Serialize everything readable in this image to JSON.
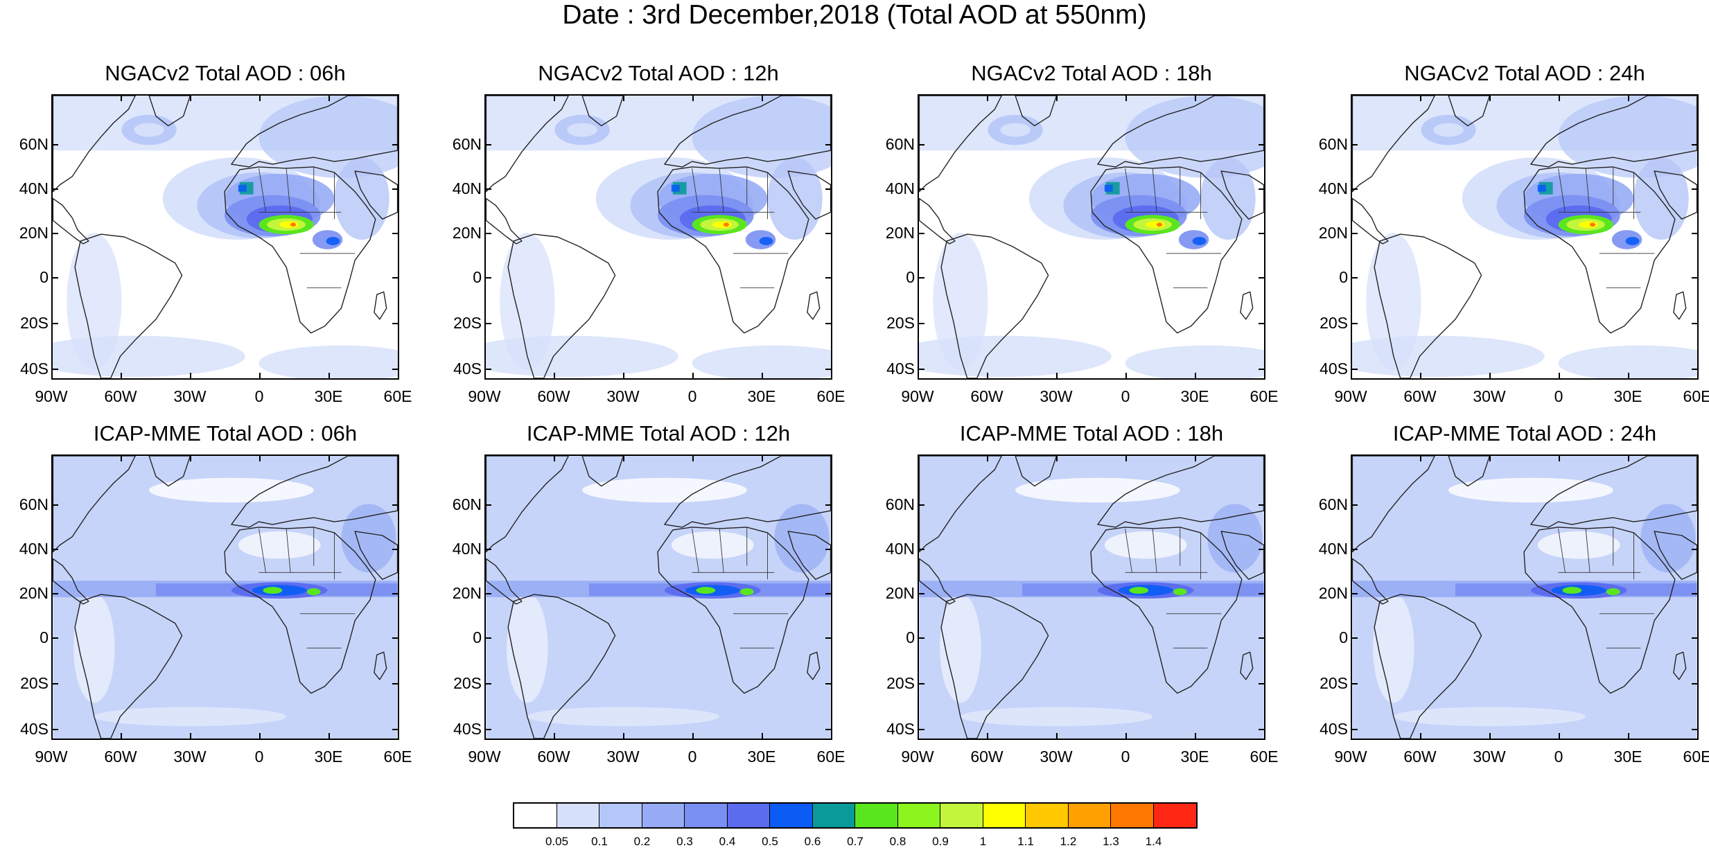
{
  "title": "Date : 3rd December,2018 (Total AOD at 550nm)",
  "panels": [
    {
      "title": "NGACv2 Total AOD : 06h"
    },
    {
      "title": "NGACv2 Total AOD : 12h"
    },
    {
      "title": "NGACv2 Total AOD : 18h"
    },
    {
      "title": "NGACv2 Total AOD : 24h"
    },
    {
      "title": "ICAP-MME Total AOD : 06h"
    },
    {
      "title": "ICAP-MME Total AOD : 12h"
    },
    {
      "title": "ICAP-MME Total AOD : 18h"
    },
    {
      "title": "ICAP-MME Total AOD : 24h"
    }
  ],
  "lat_labels": [
    "60N",
    "40N",
    "20N",
    "0",
    "20S",
    "40S"
  ],
  "lon_labels": [
    "90W",
    "60W",
    "30W",
    "0",
    "30E",
    "60E"
  ],
  "colorbar": {
    "colors": [
      "#ffffff",
      "#d6e0fb",
      "#b5c6f8",
      "#97acf5",
      "#7a8ff2",
      "#5c6cef",
      "#0a5cf5",
      "#0a9a9a",
      "#5ae61e",
      "#8cf51e",
      "#c3f53c",
      "#ffff00",
      "#ffc800",
      "#ffa000",
      "#ff7800",
      "#ff2814"
    ],
    "labels": [
      "0.05",
      "0.1",
      "0.2",
      "0.3",
      "0.4",
      "0.5",
      "0.6",
      "0.7",
      "0.8",
      "0.9",
      "1",
      "1.1",
      "1.2",
      "1.3",
      "1.4"
    ]
  }
}
